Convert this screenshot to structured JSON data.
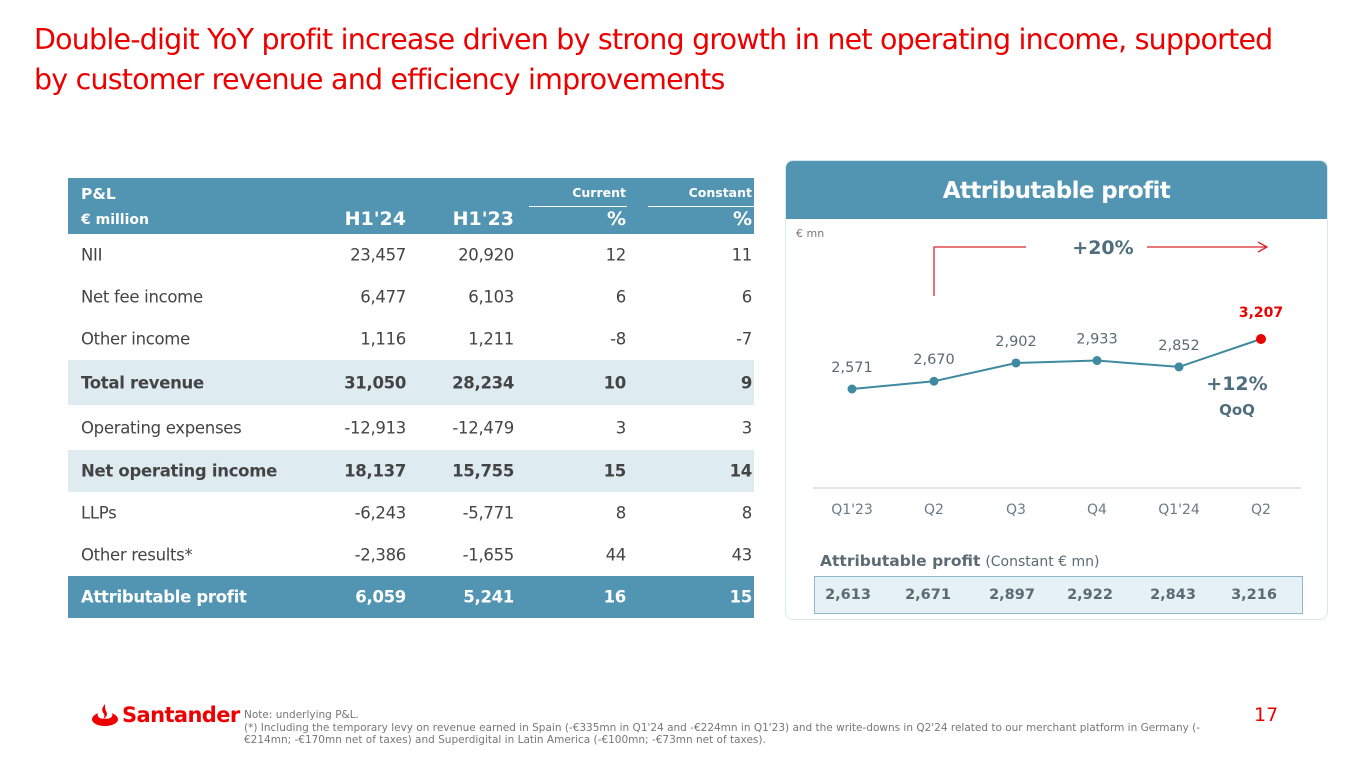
{
  "slide": {
    "title": "Double-digit YoY profit increase driven by strong growth in net operating income, supported by customer revenue and efficiency improvements",
    "page_number": "17",
    "brand": "Santander",
    "colors": {
      "brand_red": "#ec0000",
      "header_blue": "#5295b2",
      "highlight_row": "#deecf1",
      "line_teal": "#3f8aa0"
    }
  },
  "table": {
    "header": {
      "label_top": "P&L",
      "label_bottom": "€ million",
      "col1": "H1'24",
      "col2": "H1'23",
      "col3_top": "Current",
      "col3_bottom": "%",
      "col4_top": "Constant",
      "col4_bottom": "%"
    },
    "rows": [
      {
        "label": "NII",
        "h124": "23,457",
        "h123": "20,920",
        "current": "12",
        "constant": "11",
        "style": "normal"
      },
      {
        "label": "Net fee income",
        "h124": "6,477",
        "h123": "6,103",
        "current": "6",
        "constant": "6",
        "style": "normal"
      },
      {
        "label": "Other income",
        "h124": "1,116",
        "h123": "1,211",
        "current": "-8",
        "constant": "-7",
        "style": "normal"
      },
      {
        "label": "Total revenue",
        "h124": "31,050",
        "h123": "28,234",
        "current": "10",
        "constant": "9",
        "style": "highlight"
      },
      {
        "label": "Operating expenses",
        "h124": "-12,913",
        "h123": "-12,479",
        "current": "3",
        "constant": "3",
        "style": "normal"
      },
      {
        "label": "Net operating income",
        "h124": "18,137",
        "h123": "15,755",
        "current": "15",
        "constant": "14",
        "style": "highlight"
      },
      {
        "label": "LLPs",
        "h124": "-6,243",
        "h123": "-5,771",
        "current": "8",
        "constant": "8",
        "style": "normal"
      },
      {
        "label": "Other results*",
        "h124": "-2,386",
        "h123": "-1,655",
        "current": "44",
        "constant": "43",
        "style": "normal"
      },
      {
        "label": "Attributable profit",
        "h124": "6,059",
        "h123": "5,241",
        "current": "16",
        "constant": "15",
        "style": "total"
      }
    ]
  },
  "panel": {
    "title": "Attributable profit",
    "unit": "€ mn",
    "yoy_label": "+20%",
    "qoq_label": "+12%",
    "qoq_sub": "QoQ",
    "constant_label_bold": "Attributable profit",
    "constant_label_rest": "(Constant € mn)",
    "constant_values": [
      "2,613",
      "2,671",
      "2,897",
      "2,922",
      "2,843",
      "3,216"
    ]
  },
  "chart_data": {
    "type": "line",
    "title": "Attributable profit",
    "ylabel": "€ mn",
    "xlabel": "",
    "categories": [
      "Q1'23",
      "Q2",
      "Q3",
      "Q4",
      "Q1'24",
      "Q2"
    ],
    "series": [
      {
        "name": "Attributable profit (€ mn)",
        "values": [
          2571,
          2670,
          2902,
          2933,
          2852,
          3207
        ]
      }
    ],
    "data_labels": [
      "2,571",
      "2,670",
      "2,902",
      "2,933",
      "2,852",
      "3,207"
    ],
    "highlight_index": 5,
    "annotations": [
      "+20% (Q2'23 to Q2'24)",
      "+12% QoQ"
    ],
    "ylim": [
      2000,
      3400
    ],
    "grid": false,
    "legend": "none"
  },
  "footer": {
    "note_line1": "Note: underlying P&L.",
    "note_line2": "(*) Including the temporary levy on revenue earned in Spain (-€335mn in Q1'24 and -€224mn in Q1'23) and the write-downs in Q2'24 related to our merchant platform in Germany (-€214mn; -€170mn net of taxes) and Superdigital in Latin America (-€100mn; -€73mn net of taxes)."
  }
}
